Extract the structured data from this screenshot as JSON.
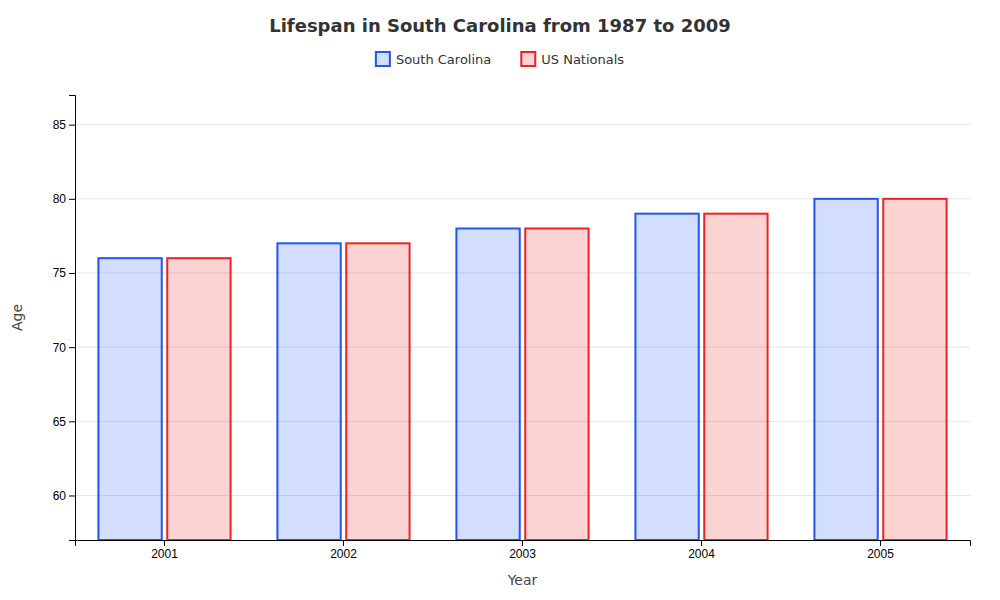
{
  "chart_data": {
    "type": "bar",
    "title": "Lifespan in South Carolina from 1987 to 2009",
    "xlabel": "Year",
    "ylabel": "Age",
    "categories": [
      "2001",
      "2002",
      "2003",
      "2004",
      "2005"
    ],
    "series": [
      {
        "name": "South Carolina",
        "color": "#2255ee",
        "values": [
          76,
          77,
          78,
          79,
          80
        ]
      },
      {
        "name": "US Nationals",
        "color": "#ee2222",
        "values": [
          76,
          77,
          78,
          79,
          80
        ]
      }
    ],
    "ylim": [
      57,
      87
    ],
    "yticks": [
      60,
      65,
      70,
      75,
      80,
      85
    ],
    "grid": true,
    "legend": "top"
  }
}
